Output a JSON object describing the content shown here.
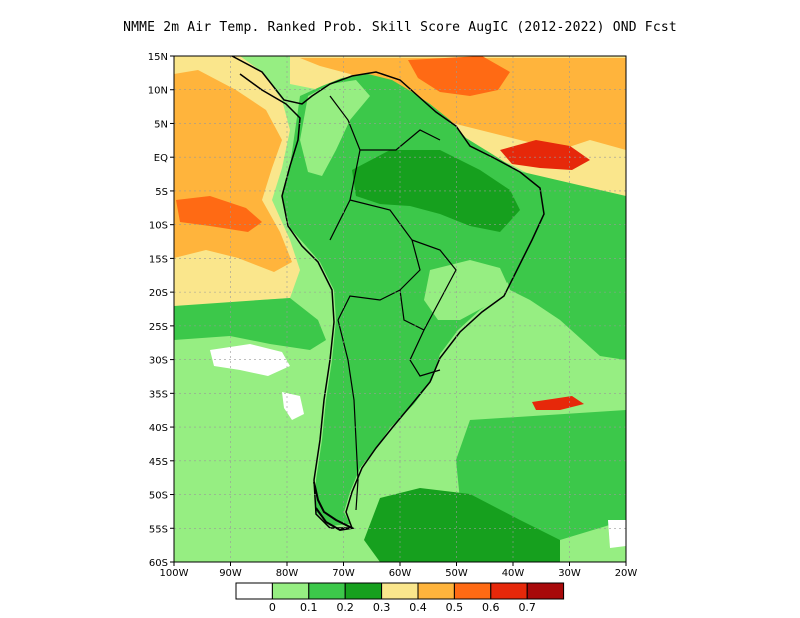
{
  "title": "NMME  2m Air Temp. Ranked Prob. Skill Score AugIC (2012-2022) OND Fcst",
  "map": {
    "lon_range": [
      -100,
      -20
    ],
    "lat_range": [
      -60,
      15
    ],
    "lat_ticks": [
      "15N",
      "10N",
      "5N",
      "EQ",
      "5S",
      "10S",
      "15S",
      "20S",
      "25S",
      "30S",
      "35S",
      "40S",
      "45S",
      "50S",
      "55S",
      "60S"
    ],
    "lon_ticks": [
      "100W",
      "90W",
      "80W",
      "70W",
      "60W",
      "50W",
      "40W",
      "30W",
      "20W"
    ],
    "grid": true
  },
  "colorbar": {
    "colors": [
      "#ffffff",
      "#96ee82",
      "#3cc84a",
      "#16a01e",
      "#fae68c",
      "#ffb43c",
      "#ff6a14",
      "#e6280a",
      "#a8090a"
    ],
    "labels": [
      "0",
      "0.1",
      "0.2",
      "0.3",
      "0.4",
      "0.5",
      "0.6",
      "0.7"
    ]
  }
}
